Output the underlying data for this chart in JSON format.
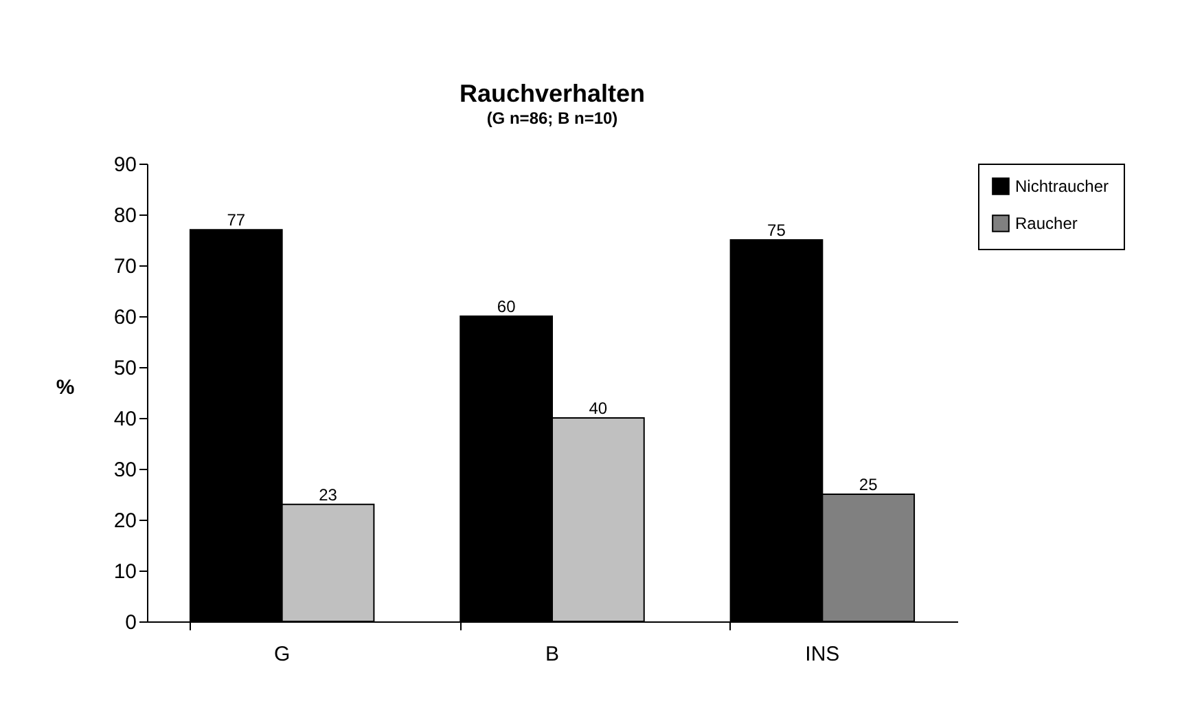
{
  "chart_data": {
    "type": "bar",
    "title": "Rauchverhalten",
    "subtitle": "(G n=86; B n=10)",
    "ylabel": "%",
    "categories": [
      "G",
      "B",
      "INS"
    ],
    "series": [
      {
        "name": "Nichtraucher",
        "color": "#000000",
        "values": [
          77,
          60,
          75
        ]
      },
      {
        "name": "Raucher",
        "color": "#808080",
        "colors": [
          "#c0c0c0",
          "#c0c0c0",
          "#808080"
        ],
        "values": [
          23,
          40,
          25
        ]
      }
    ],
    "ylim": [
      0,
      90
    ],
    "yticks": [
      0,
      10,
      20,
      30,
      40,
      50,
      60,
      70,
      80,
      90
    ],
    "data_labels": true,
    "grid": false,
    "legend": "right"
  }
}
